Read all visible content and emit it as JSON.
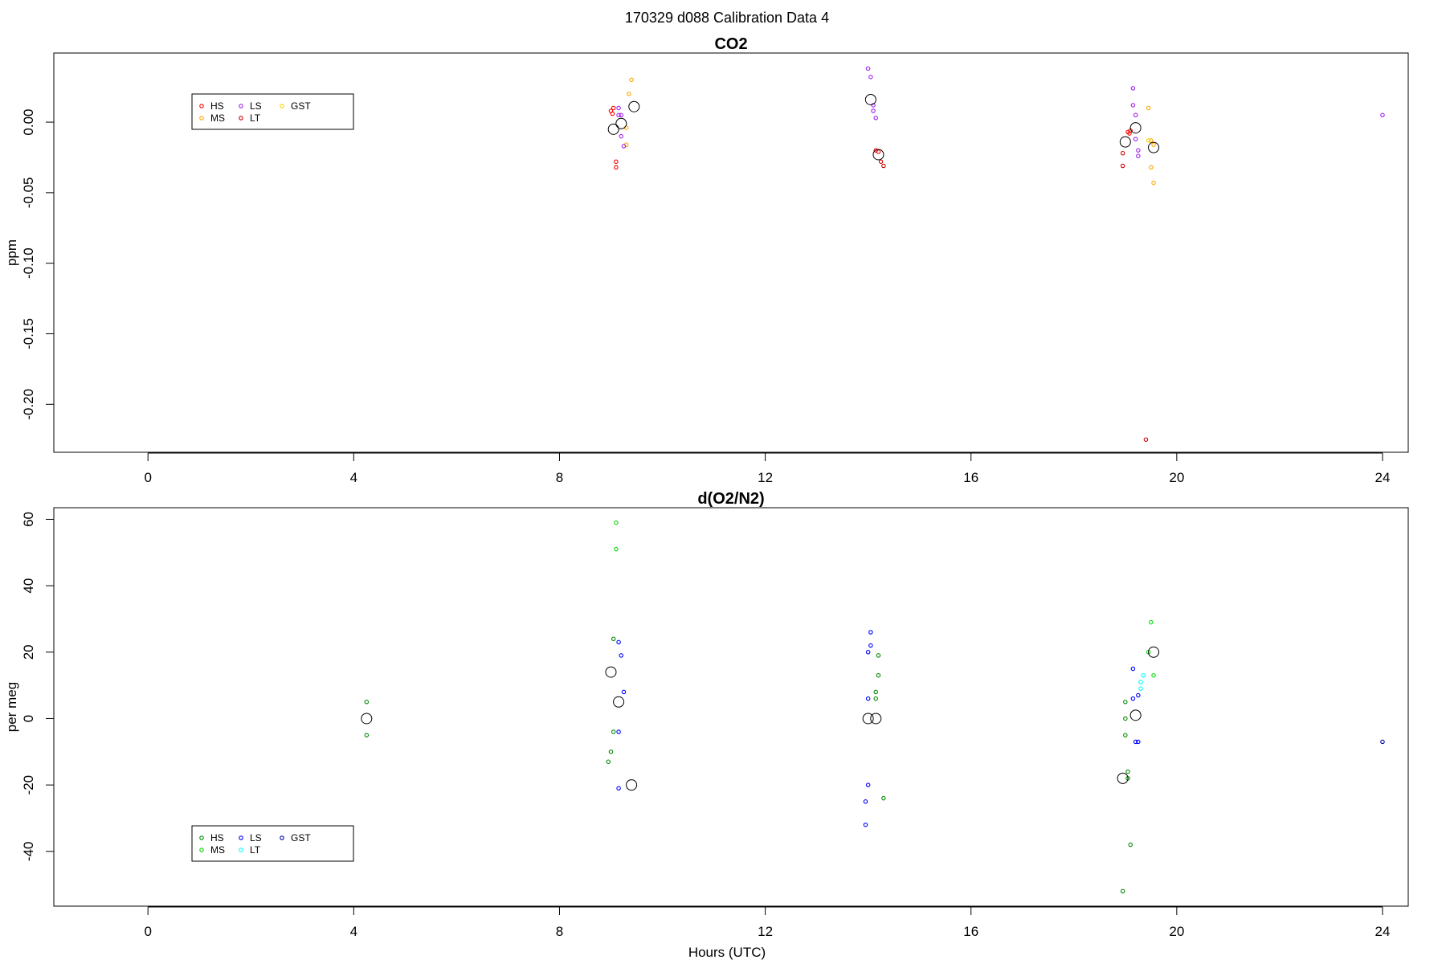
{
  "figure": {
    "title": "170329   d088   Calibration Data 4",
    "xlabel": "Hours (UTC)"
  },
  "chart_data": [
    {
      "type": "scatter",
      "title": "CO2",
      "xlabel": "",
      "ylabel": "ppm",
      "xlim": [
        -1.83,
        24.5
      ],
      "ylim": [
        -0.234,
        0.049
      ],
      "xticks": [
        0,
        4,
        8,
        12,
        16,
        20,
        24
      ],
      "yticks": [
        0.0,
        -0.05,
        -0.1,
        -0.15,
        -0.2
      ],
      "ytick_labels": [
        "0.00",
        "-0.05",
        "-0.10",
        "-0.15",
        "-0.20"
      ],
      "grid": false,
      "legend": {
        "position": "top-left",
        "entries": [
          {
            "label": "HS",
            "color": "#ff0000"
          },
          {
            "label": "MS",
            "color": "#ffa500"
          },
          {
            "label": "LS",
            "color": "#a020f0"
          },
          {
            "label": "LT",
            "color": "#cd0000"
          },
          {
            "label": "GST",
            "color": "#ffd700"
          }
        ]
      },
      "series": [
        {
          "name": "HS",
          "color": "#ff0000",
          "points": [
            [
              9.0,
              0.008
            ],
            [
              9.05,
              0.01
            ],
            [
              9.03,
              0.006
            ],
            [
              9.1,
              -0.028
            ],
            [
              9.1,
              -0.032
            ],
            [
              14.15,
              -0.02
            ],
            [
              14.2,
              -0.021
            ],
            [
              19.05,
              -0.007
            ],
            [
              19.1,
              -0.006
            ],
            [
              19.08,
              -0.008
            ]
          ]
        },
        {
          "name": "MS",
          "color": "#ffa500",
          "points": [
            [
              9.4,
              0.03
            ],
            [
              9.35,
              0.02
            ],
            [
              9.3,
              -0.004
            ],
            [
              9.3,
              -0.016
            ],
            [
              19.45,
              0.01
            ],
            [
              19.5,
              -0.013
            ],
            [
              19.55,
              -0.016
            ],
            [
              19.5,
              -0.032
            ],
            [
              19.55,
              -0.043
            ]
          ]
        },
        {
          "name": "LS",
          "color": "#a020f0",
          "points": [
            [
              9.15,
              0.01
            ],
            [
              9.15,
              0.005
            ],
            [
              9.2,
              0.005
            ],
            [
              9.2,
              -0.01
            ],
            [
              9.25,
              -0.017
            ],
            [
              14.0,
              0.038
            ],
            [
              14.05,
              0.032
            ],
            [
              14.1,
              0.012
            ],
            [
              14.1,
              0.008
            ],
            [
              14.15,
              0.003
            ],
            [
              19.15,
              0.024
            ],
            [
              19.15,
              0.012
            ],
            [
              19.2,
              0.005
            ],
            [
              19.2,
              -0.012
            ],
            [
              19.25,
              -0.02
            ],
            [
              19.25,
              -0.024
            ],
            [
              24.0,
              0.005
            ]
          ]
        },
        {
          "name": "LT",
          "color": "#cd0000",
          "points": [
            [
              14.25,
              -0.028
            ],
            [
              14.3,
              -0.031
            ],
            [
              18.95,
              -0.022
            ],
            [
              18.95,
              -0.031
            ],
            [
              19.4,
              -0.225
            ]
          ]
        },
        {
          "name": "GST",
          "color": "#ffd700",
          "points": [
            [
              19.45,
              -0.013
            ]
          ]
        },
        {
          "name": "mean",
          "color": "#000000",
          "points": [
            [
              9.05,
              -0.005
            ],
            [
              9.2,
              -0.001
            ],
            [
              9.45,
              0.011
            ],
            [
              14.05,
              0.016
            ],
            [
              14.2,
              -0.023
            ],
            [
              19.0,
              -0.014
            ],
            [
              19.2,
              -0.004
            ],
            [
              19.55,
              -0.018
            ]
          ]
        }
      ]
    },
    {
      "type": "scatter",
      "title": "d(O2/N2)",
      "xlabel": "Hours (UTC)",
      "ylabel": "per meg",
      "xlim": [
        -1.83,
        24.5
      ],
      "ylim": [
        -56.5,
        63.5
      ],
      "xticks": [
        0,
        4,
        8,
        12,
        16,
        20,
        24
      ],
      "yticks": [
        60,
        40,
        20,
        0,
        -20,
        -40
      ],
      "ytick_labels": [
        "60",
        "40",
        "20",
        "0",
        "-20",
        "-40"
      ],
      "grid": false,
      "legend": {
        "position": "bottom-left",
        "entries": [
          {
            "label": "HS",
            "color": "#008b00"
          },
          {
            "label": "MS",
            "color": "#00dd00"
          },
          {
            "label": "LS",
            "color": "#0000ff"
          },
          {
            "label": "LT",
            "color": "#00ffff"
          },
          {
            "label": "GST",
            "color": "#0000aa"
          }
        ]
      },
      "series": [
        {
          "name": "HS",
          "color": "#008b00",
          "points": [
            [
              4.25,
              5
            ],
            [
              4.25,
              -5
            ],
            [
              9.05,
              24
            ],
            [
              9.0,
              -10
            ],
            [
              8.95,
              -13
            ],
            [
              9.05,
              -4
            ],
            [
              14.2,
              19
            ],
            [
              14.2,
              13
            ],
            [
              14.15,
              8
            ],
            [
              14.15,
              6
            ],
            [
              14.3,
              -24
            ],
            [
              19.0,
              5
            ],
            [
              19.0,
              0
            ],
            [
              19.0,
              -5
            ],
            [
              19.05,
              -16
            ],
            [
              19.05,
              -18
            ],
            [
              19.1,
              -38
            ],
            [
              18.95,
              -52
            ]
          ]
        },
        {
          "name": "MS",
          "color": "#00dd00",
          "points": [
            [
              9.1,
              59
            ],
            [
              9.1,
              51
            ],
            [
              19.5,
              29
            ],
            [
              19.45,
              20
            ],
            [
              19.55,
              13
            ]
          ]
        },
        {
          "name": "LS",
          "color": "#0000ff",
          "points": [
            [
              9.15,
              23
            ],
            [
              9.2,
              19
            ],
            [
              9.25,
              8
            ],
            [
              9.15,
              -4
            ],
            [
              9.15,
              -21
            ],
            [
              14.05,
              26
            ],
            [
              14.05,
              22
            ],
            [
              14.0,
              20
            ],
            [
              14.0,
              6
            ],
            [
              14.0,
              -20
            ],
            [
              13.95,
              -25
            ],
            [
              13.95,
              -32
            ],
            [
              19.15,
              15
            ],
            [
              19.15,
              6
            ],
            [
              19.25,
              7
            ],
            [
              19.2,
              -7
            ],
            [
              19.25,
              -7
            ]
          ]
        },
        {
          "name": "LT",
          "color": "#00ffff",
          "points": [
            [
              19.35,
              13
            ],
            [
              19.3,
              11
            ],
            [
              19.3,
              9
            ]
          ]
        },
        {
          "name": "GST",
          "color": "#0000aa",
          "points": [
            [
              24.0,
              -7
            ]
          ]
        },
        {
          "name": "mean",
          "color": "#000000",
          "points": [
            [
              4.25,
              0
            ],
            [
              9.0,
              14
            ],
            [
              9.15,
              5
            ],
            [
              9.4,
              -20
            ],
            [
              14.0,
              0
            ],
            [
              14.15,
              0
            ],
            [
              18.95,
              -18
            ],
            [
              19.2,
              1
            ],
            [
              19.55,
              20
            ]
          ]
        }
      ]
    }
  ]
}
